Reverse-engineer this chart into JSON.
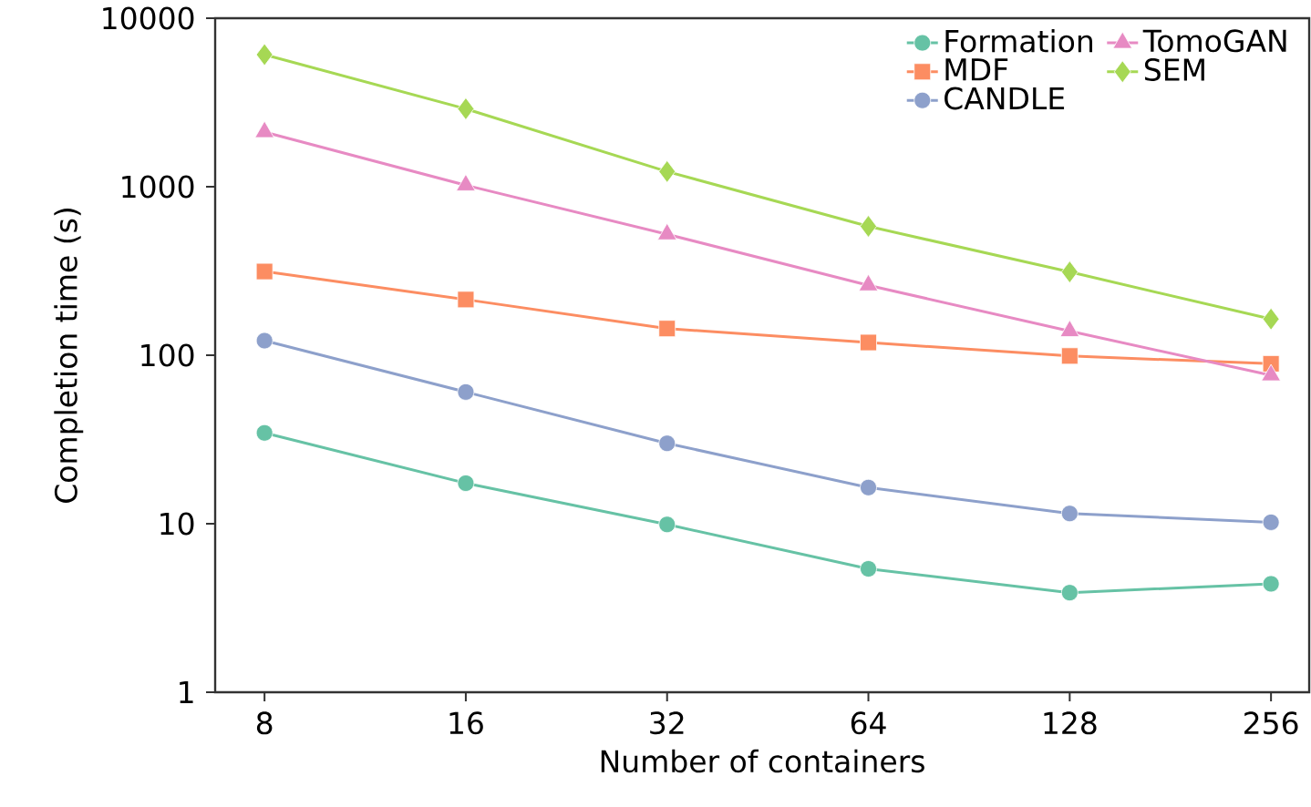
{
  "chart_data": {
    "type": "line",
    "xlabel": "Number of containers",
    "ylabel": "Completion time (s)",
    "x": [
      8,
      16,
      32,
      64,
      128,
      256
    ],
    "log": "xy",
    "xlim": [
      6.75,
      292
    ],
    "ylim": [
      1,
      10000
    ],
    "xticks": [
      8,
      16,
      32,
      64,
      128,
      256
    ],
    "yticks": [
      1,
      10,
      100,
      1000,
      10000
    ],
    "legend": "top right",
    "grid": false,
    "line_style": "solid",
    "series": [
      {
        "name": "Formation",
        "color": "#66c2a5",
        "marker": "circle",
        "values": [
          34.6,
          17.4,
          9.9,
          5.4,
          3.9,
          4.4
        ]
      },
      {
        "name": "MDF",
        "color": "#fc8d62",
        "marker": "square",
        "values": [
          314,
          214,
          144,
          119,
          99,
          89
        ]
      },
      {
        "name": "CANDLE",
        "color": "#8da0cb",
        "marker": "circle",
        "values": [
          122,
          60.5,
          30,
          16.4,
          11.5,
          10.2
        ]
      },
      {
        "name": "TomoGAN",
        "color": "#e78ac3",
        "marker": "triangle",
        "values": [
          2110,
          1020,
          522,
          260,
          139,
          76
        ]
      },
      {
        "name": "SEM",
        "color": "#a6d854",
        "marker": "diamond",
        "values": [
          6080,
          2900,
          1230,
          582,
          312,
          164
        ]
      }
    ]
  }
}
